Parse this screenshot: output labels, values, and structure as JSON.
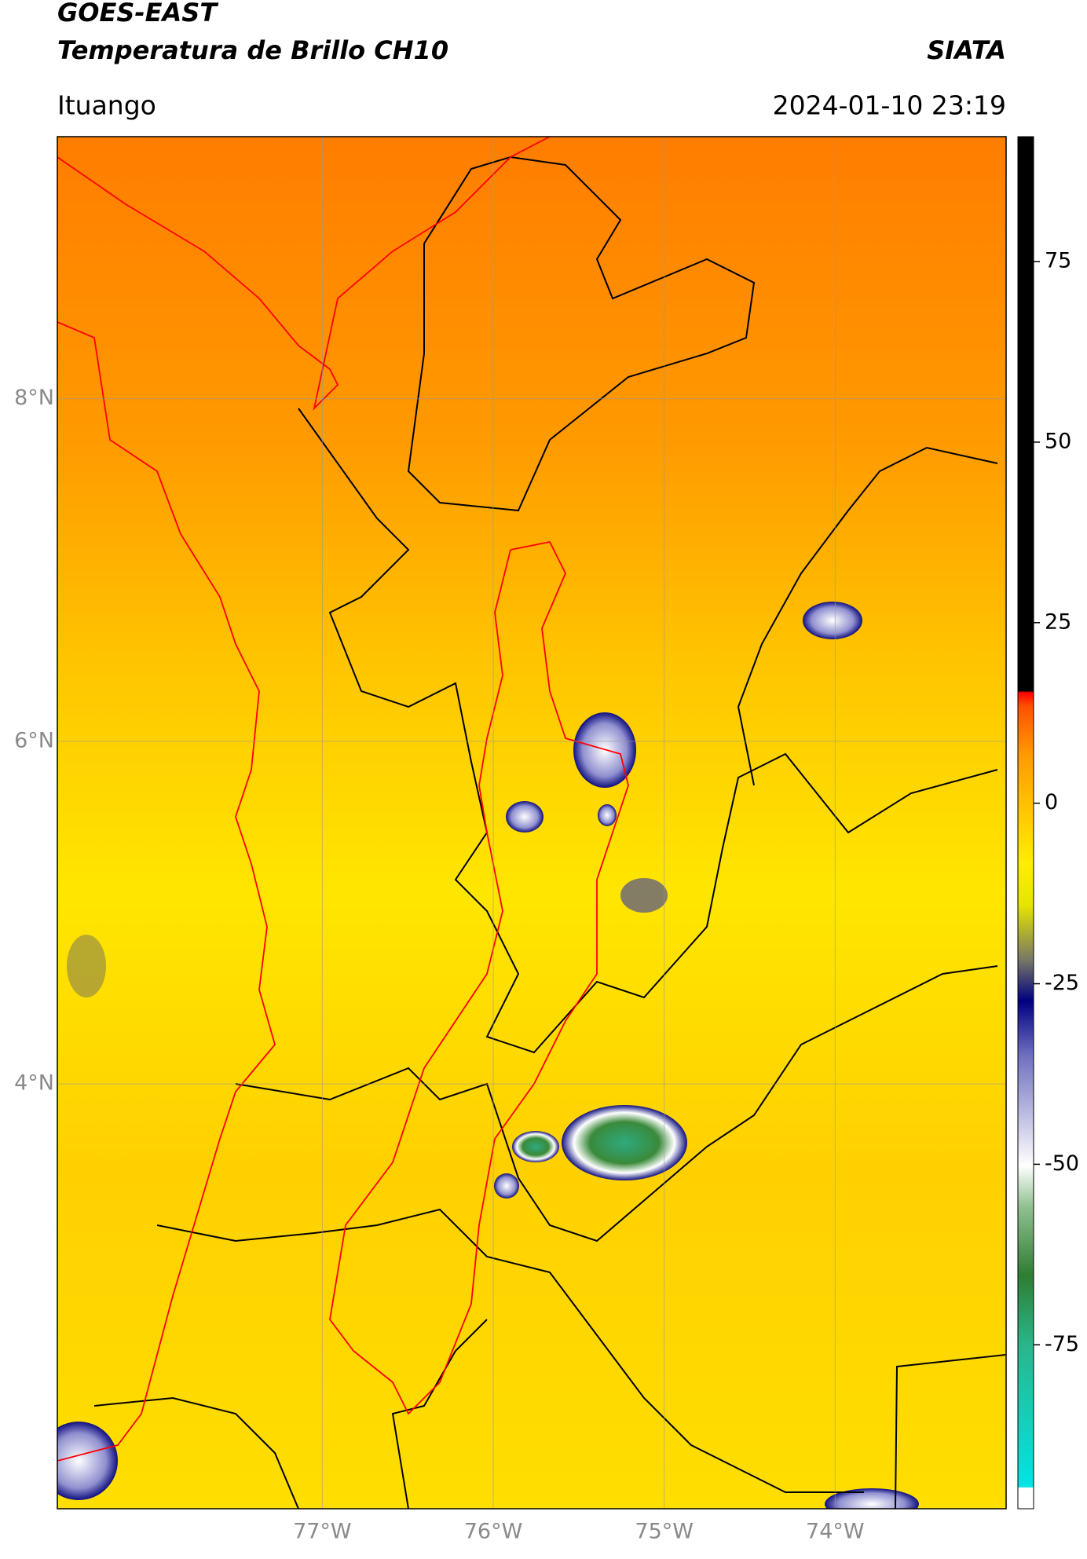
{
  "header": {
    "title": "GOES-EAST",
    "subtitle": "Temperatura de Brillo CH10",
    "source": "SIATA",
    "location": "Ituango",
    "datetime": "2024-01-10 23:19"
  },
  "map": {
    "lonlim": [
      -78.55,
      -73.0
    ],
    "latlim": [
      1.52,
      9.53
    ],
    "lonticks": [
      {
        "value": -77,
        "label": "77°W"
      },
      {
        "value": -76,
        "label": "76°W"
      },
      {
        "value": -75,
        "label": "75°W"
      },
      {
        "value": -74,
        "label": "74°W"
      }
    ],
    "latticks": [
      {
        "value": 8,
        "label": "8°N"
      },
      {
        "value": 6,
        "label": "6°N"
      },
      {
        "value": 4,
        "label": "4°N"
      }
    ],
    "grid": true
  },
  "colorbar": {
    "lim": [
      -97.7,
      92.3
    ],
    "ticks": [
      75,
      50,
      25,
      0,
      -25,
      -50,
      -75
    ]
  }
}
